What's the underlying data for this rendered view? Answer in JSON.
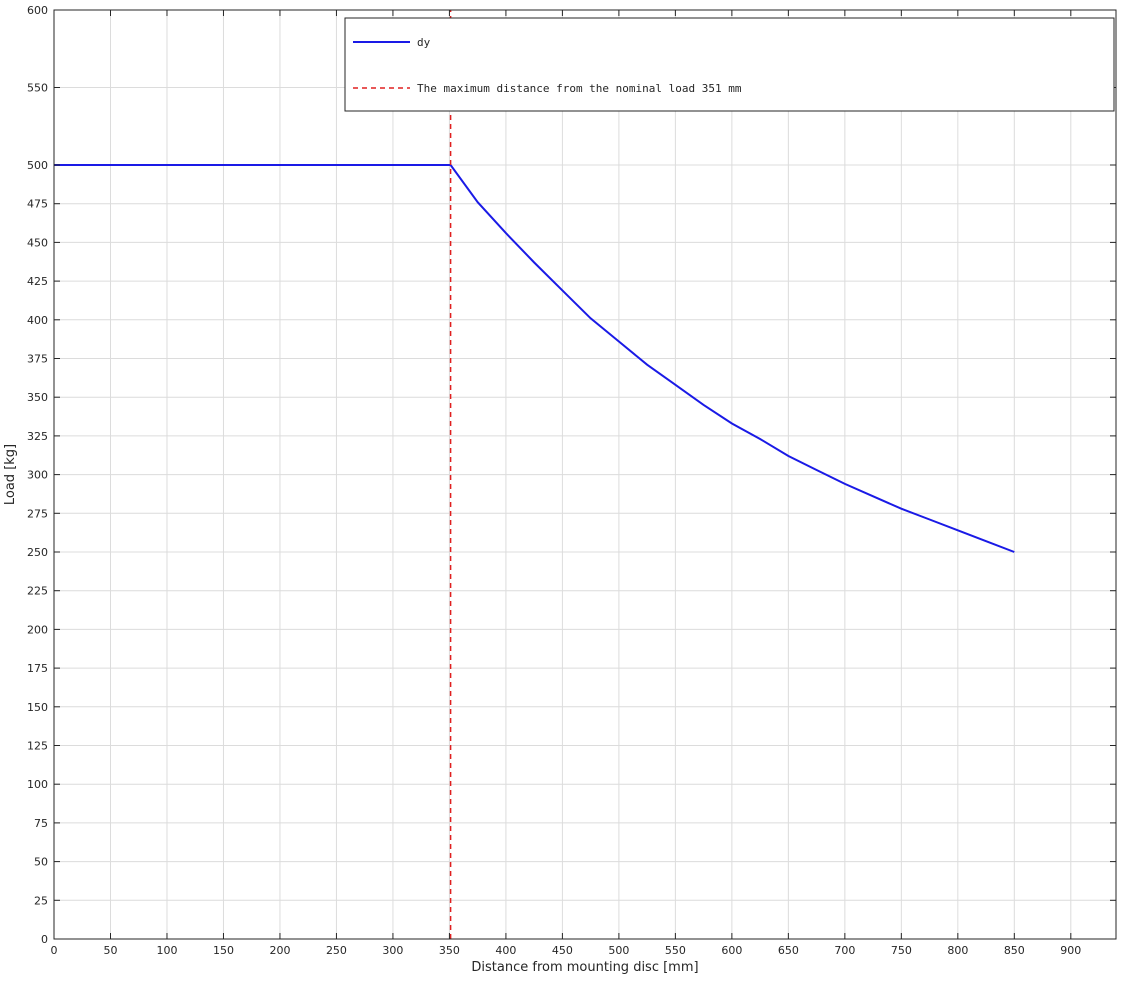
{
  "chart_data": {
    "type": "line",
    "xlabel": "Distance from mounting disc [mm]",
    "ylabel": "Load [kg]",
    "xlim": [
      0,
      940
    ],
    "ylim": [
      0,
      600
    ],
    "xticks": [
      0,
      50,
      100,
      150,
      200,
      250,
      300,
      350,
      400,
      450,
      500,
      550,
      600,
      650,
      700,
      750,
      800,
      850,
      900
    ],
    "yticks": [
      0,
      25,
      50,
      75,
      100,
      125,
      150,
      175,
      200,
      225,
      250,
      275,
      300,
      325,
      350,
      375,
      400,
      425,
      450,
      475,
      500,
      550,
      600
    ],
    "grid": true,
    "legend_position": "top-right",
    "series": [
      {
        "name": "dy",
        "color": "#1a1ae6",
        "style": "solid",
        "x": [
          0,
          50,
          100,
          150,
          200,
          250,
          300,
          351,
          375,
          400,
          425,
          450,
          475,
          500,
          525,
          550,
          575,
          600,
          625,
          650,
          675,
          700,
          725,
          750,
          775,
          800,
          825,
          850
        ],
        "y": [
          500,
          500,
          500,
          500,
          500,
          500,
          500,
          500,
          476,
          456,
          437,
          419,
          401,
          386,
          371,
          358,
          345,
          333,
          323,
          312,
          303,
          294,
          286,
          278,
          271,
          264,
          257,
          250
        ]
      },
      {
        "name": "The maximum distance from the nominal load 351 mm",
        "color": "#e02020",
        "style": "dashed",
        "x": [
          351,
          351
        ],
        "y": [
          0,
          600
        ]
      }
    ]
  }
}
